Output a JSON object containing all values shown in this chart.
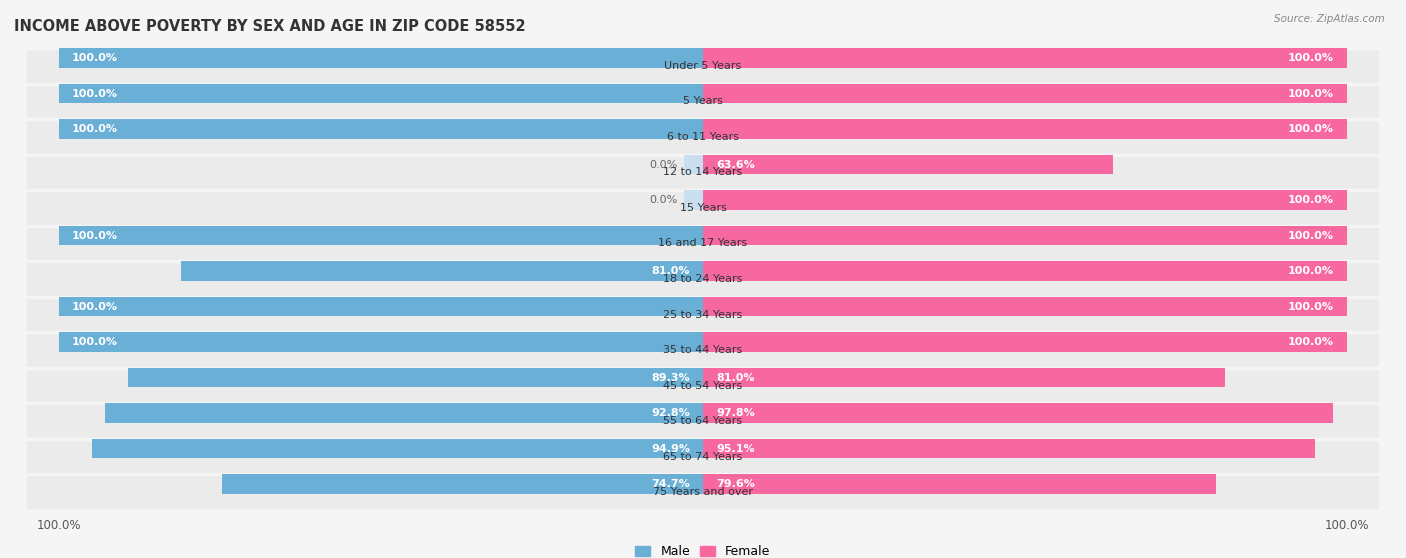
{
  "title": "INCOME ABOVE POVERTY BY SEX AND AGE IN ZIP CODE 58552",
  "source": "Source: ZipAtlas.com",
  "categories": [
    "Under 5 Years",
    "5 Years",
    "6 to 11 Years",
    "12 to 14 Years",
    "15 Years",
    "16 and 17 Years",
    "18 to 24 Years",
    "25 to 34 Years",
    "35 to 44 Years",
    "45 to 54 Years",
    "55 to 64 Years",
    "65 to 74 Years",
    "75 Years and over"
  ],
  "male": [
    100.0,
    100.0,
    100.0,
    0.0,
    0.0,
    100.0,
    81.0,
    100.0,
    100.0,
    89.3,
    92.8,
    94.9,
    74.7
  ],
  "female": [
    100.0,
    100.0,
    100.0,
    63.6,
    100.0,
    100.0,
    100.0,
    100.0,
    100.0,
    81.0,
    97.8,
    95.1,
    79.6
  ],
  "male_color": "#6aafd6",
  "female_color": "#f768a1",
  "male_color_light": "#c9dff0",
  "female_color_light": "#fbcfe0",
  "row_bg_color": "#ebebeb",
  "background_color": "#f5f5f5",
  "title_fontsize": 10.5,
  "label_fontsize": 8.0,
  "value_fontsize": 8.0,
  "tick_fontsize": 8.5,
  "legend_fontsize": 9,
  "source_fontsize": 7.5
}
